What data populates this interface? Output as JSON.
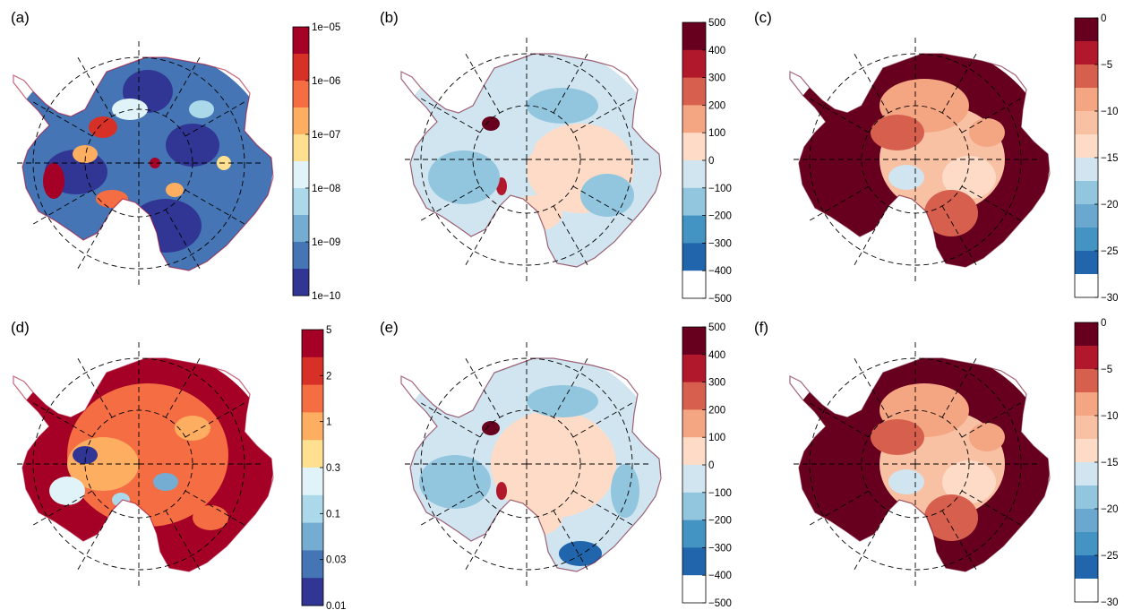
{
  "panels": [
    {
      "label": "(a)",
      "variant": "a",
      "colorbar": {
        "ticks": [
          "1e−05",
          "1e−06",
          "1e−07",
          "1e−08",
          "1e−09",
          "1e−10"
        ],
        "colors": [
          "#a50026",
          "#d73027",
          "#f46d43",
          "#fdae61",
          "#fee090",
          "#e0f3f8",
          "#abd9e9",
          "#74add1",
          "#4575b4",
          "#313695"
        ],
        "continuous": true
      }
    },
    {
      "label": "(b)",
      "variant": "b",
      "colorbar": {
        "ticks": [
          "500",
          "400",
          "300",
          "200",
          "100",
          "0",
          "−100",
          "−200",
          "−300",
          "−400",
          "−500"
        ],
        "colors": [
          "#67001f",
          "#b2182b",
          "#d6604d",
          "#f4a582",
          "#fddbc7",
          "#d1e5f0",
          "#92c5de",
          "#4393c3",
          "#2166ac",
          "#ffffff"
        ],
        "continuous": false
      }
    },
    {
      "label": "(c)",
      "variant": "c",
      "colorbar": {
        "ticks": [
          "0",
          "−5",
          "−10",
          "−15",
          "−20",
          "−25",
          "−30"
        ],
        "colors": [
          "#67001f",
          "#b2182b",
          "#d6604d",
          "#f4a582",
          "#f8c1a4",
          "#fddbc7",
          "#d1e5f0",
          "#92c5de",
          "#6aa8cf",
          "#4393c3",
          "#2166ac",
          "#ffffff"
        ],
        "continuous": false
      }
    },
    {
      "label": "(d)",
      "variant": "d",
      "colorbar": {
        "ticks": [
          "5",
          "2",
          "1",
          "0.3",
          "0.1",
          "0.03",
          "0.01"
        ],
        "colors": [
          "#a50026",
          "#d73027",
          "#f46d43",
          "#fdae61",
          "#fee090",
          "#e0f3f8",
          "#abd9e9",
          "#74add1",
          "#4575b4",
          "#313695"
        ],
        "continuous": true
      }
    },
    {
      "label": "(e)",
      "variant": "e",
      "colorbar": {
        "ticks": [
          "500",
          "400",
          "300",
          "200",
          "100",
          "0",
          "−100",
          "−200",
          "−300",
          "−400",
          "−500"
        ],
        "colors": [
          "#67001f",
          "#b2182b",
          "#d6604d",
          "#f4a582",
          "#fddbc7",
          "#d1e5f0",
          "#92c5de",
          "#4393c3",
          "#2166ac",
          "#ffffff"
        ],
        "continuous": false
      }
    },
    {
      "label": "(f)",
      "variant": "f",
      "colorbar": {
        "ticks": [
          "0",
          "−5",
          "−10",
          "−15",
          "−20",
          "−25",
          "−30"
        ],
        "colors": [
          "#67001f",
          "#b2182b",
          "#d6604d",
          "#f4a582",
          "#f8c1a4",
          "#fddbc7",
          "#d1e5f0",
          "#92c5de",
          "#6aa8cf",
          "#4393c3",
          "#2166ac",
          "#ffffff"
        ],
        "continuous": false
      }
    }
  ]
}
